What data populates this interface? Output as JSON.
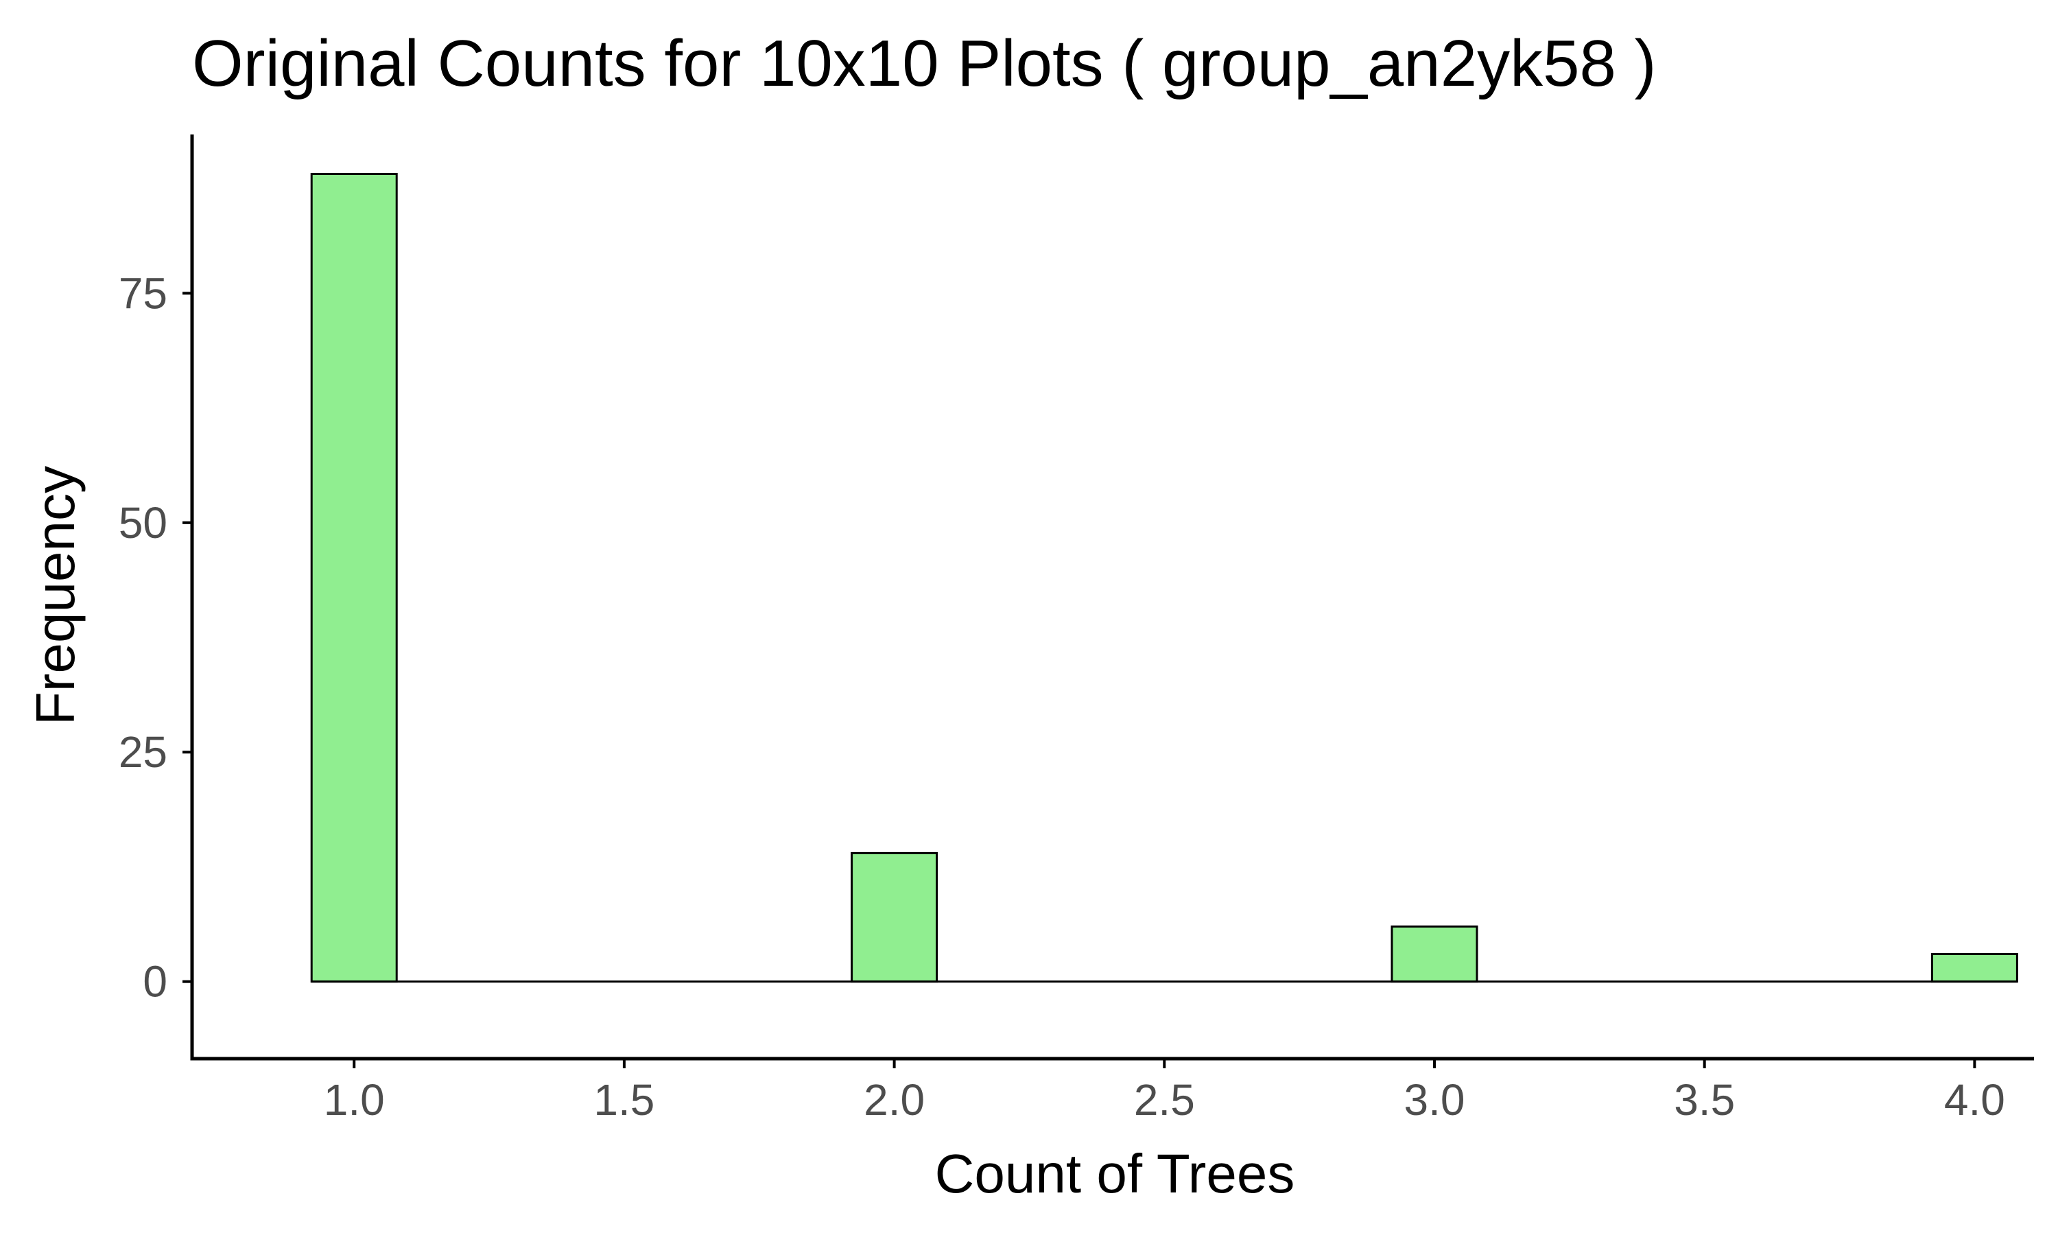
{
  "chart_data": {
    "type": "bar",
    "title": "Original Counts for 10x10 Plots ( group_an2yk58 )",
    "xlabel": "Count of Trees",
    "ylabel": "Frequency",
    "bar_fill": "#90EE90",
    "bar_outline": "#000000",
    "bin_width": 0.1575,
    "bars": [
      {
        "x": 1.0,
        "value": 88
      },
      {
        "x": 2.0,
        "value": 14
      },
      {
        "x": 3.0,
        "value": 6
      },
      {
        "x": 4.0,
        "value": 3
      }
    ],
    "xlim": [
      0.7,
      4.11
    ],
    "ylim": [
      -8.4,
      92.3
    ],
    "x_ticks": [
      {
        "value": 1.0,
        "label": "1.0"
      },
      {
        "value": 1.5,
        "label": "1.5"
      },
      {
        "value": 2.0,
        "label": "2.0"
      },
      {
        "value": 2.5,
        "label": "2.5"
      },
      {
        "value": 3.0,
        "label": "3.0"
      },
      {
        "value": 3.5,
        "label": "3.5"
      },
      {
        "value": 4.0,
        "label": "4.0"
      }
    ],
    "y_ticks": [
      {
        "value": 0,
        "label": "0"
      },
      {
        "value": 25,
        "label": "25"
      },
      {
        "value": 50,
        "label": "50"
      },
      {
        "value": 75,
        "label": "75"
      }
    ],
    "grid": false,
    "legend": "none"
  }
}
